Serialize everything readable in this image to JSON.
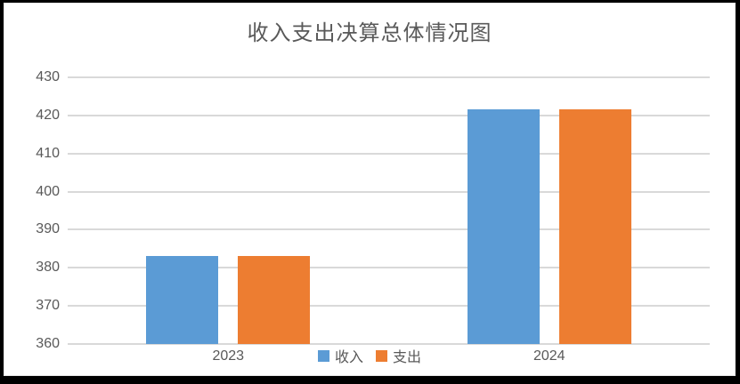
{
  "window": {
    "frame_color": "#000000",
    "background_color": "#ffffff"
  },
  "chart_data": {
    "type": "bar",
    "title": "收入支出决算总体情况图",
    "categories": [
      "2023",
      "2024"
    ],
    "series": [
      {
        "name": "收入",
        "color": "#5b9bd5",
        "values": [
          383,
          421.7
        ]
      },
      {
        "name": "支出",
        "color": "#ed7d31",
        "values": [
          383,
          421.7
        ]
      }
    ],
    "xlabel": "",
    "ylabel": "",
    "ylim": [
      360,
      430
    ],
    "yticks": [
      360,
      370,
      380,
      390,
      400,
      410,
      420,
      430
    ],
    "grid": true,
    "gridline_color": "#d9d9d9",
    "text_color": "#595959",
    "legend_position": "bottom-center",
    "legend_entries": [
      "收入",
      "支出"
    ]
  }
}
